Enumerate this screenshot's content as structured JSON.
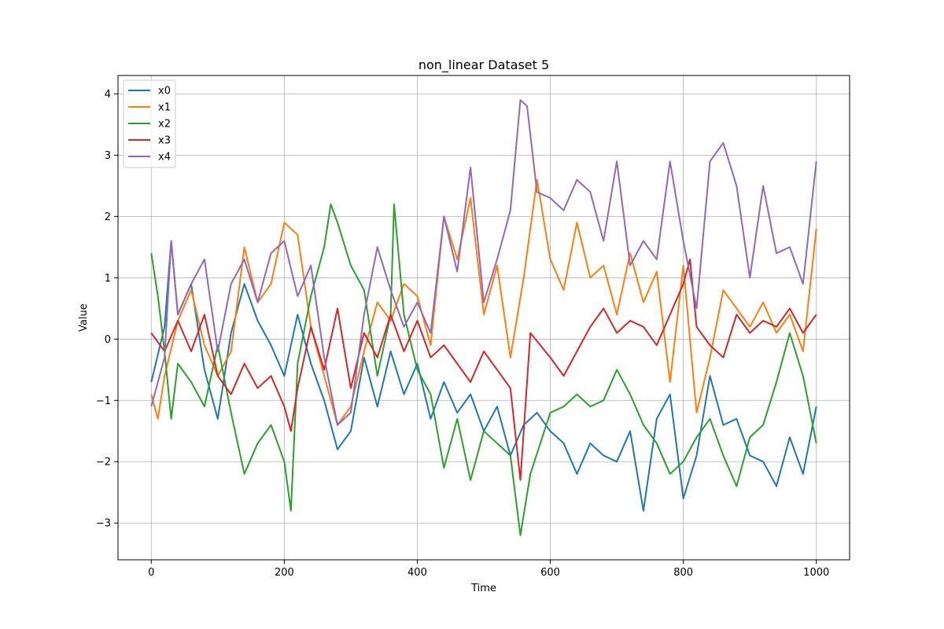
{
  "chart_data": {
    "type": "line",
    "title": "non_linear Dataset 5",
    "xlabel": "Time",
    "ylabel": "Value",
    "xlim": [
      -50,
      1050
    ],
    "ylim": [
      -3.6,
      4.3
    ],
    "xticks": [
      0,
      200,
      400,
      600,
      800,
      1000
    ],
    "yticks": [
      -3,
      -2,
      -1,
      0,
      1,
      2,
      3,
      4
    ],
    "grid": true,
    "legend_position": "top-left",
    "series": [
      {
        "name": "x0",
        "color": "#1f77b4",
        "x": [
          0,
          20,
          30,
          40,
          60,
          80,
          100,
          120,
          140,
          160,
          180,
          200,
          220,
          240,
          260,
          280,
          300,
          320,
          340,
          360,
          380,
          400,
          420,
          440,
          460,
          480,
          500,
          520,
          540,
          560,
          580,
          600,
          620,
          640,
          660,
          680,
          700,
          720,
          740,
          760,
          780,
          800,
          820,
          840,
          860,
          880,
          900,
          920,
          940,
          960,
          980,
          1000
        ],
        "y": [
          -0.7,
          0.2,
          1.6,
          0.4,
          0.9,
          -0.5,
          -1.3,
          0.1,
          0.9,
          0.3,
          -0.1,
          -0.6,
          0.4,
          -0.4,
          -1.0,
          -1.8,
          -1.5,
          -0.3,
          -1.1,
          -0.2,
          -0.9,
          -0.4,
          -1.3,
          -0.7,
          -1.2,
          -0.9,
          -1.5,
          -1.1,
          -1.9,
          -1.4,
          -1.2,
          -1.5,
          -1.7,
          -2.2,
          -1.7,
          -1.9,
          -2.0,
          -1.5,
          -2.8,
          -1.3,
          -0.9,
          -2.6,
          -1.9,
          -0.6,
          -1.4,
          -1.3,
          -1.9,
          -2.0,
          -2.4,
          -1.6,
          -2.2,
          -1.1
        ]
      },
      {
        "name": "x1",
        "color": "#ff7f0e",
        "x": [
          0,
          10,
          20,
          40,
          60,
          80,
          100,
          120,
          140,
          160,
          180,
          200,
          220,
          240,
          260,
          280,
          300,
          320,
          340,
          360,
          380,
          400,
          420,
          440,
          460,
          480,
          500,
          520,
          540,
          560,
          580,
          600,
          620,
          640,
          660,
          680,
          700,
          720,
          740,
          760,
          780,
          800,
          820,
          840,
          860,
          880,
          900,
          920,
          940,
          960,
          980,
          1000
        ],
        "y": [
          -0.9,
          -1.3,
          -0.6,
          0.3,
          0.8,
          -0.1,
          -0.6,
          -0.2,
          1.5,
          0.6,
          0.9,
          1.9,
          1.7,
          0.2,
          -0.6,
          -1.4,
          -1.1,
          -0.2,
          0.6,
          0.3,
          0.9,
          0.7,
          -0.1,
          2.0,
          1.3,
          2.3,
          0.4,
          1.2,
          -0.3,
          1.0,
          2.6,
          1.3,
          0.8,
          1.9,
          1.0,
          1.2,
          0.4,
          1.4,
          0.6,
          1.1,
          -0.7,
          1.2,
          -1.2,
          -0.3,
          0.8,
          0.5,
          0.2,
          0.6,
          0.1,
          0.4,
          -0.2,
          1.8
        ]
      },
      {
        "name": "x2",
        "color": "#2ca02c",
        "x": [
          0,
          10,
          20,
          30,
          40,
          60,
          80,
          100,
          120,
          140,
          160,
          180,
          200,
          210,
          220,
          240,
          260,
          270,
          280,
          300,
          320,
          340,
          360,
          365,
          380,
          400,
          420,
          440,
          460,
          480,
          500,
          520,
          540,
          555,
          570,
          600,
          620,
          640,
          660,
          680,
          700,
          720,
          740,
          760,
          780,
          800,
          820,
          840,
          860,
          880,
          900,
          920,
          940,
          960,
          980,
          1000
        ],
        "y": [
          1.4,
          0.7,
          -0.2,
          -1.3,
          -0.4,
          -0.7,
          -1.1,
          -0.1,
          -1.2,
          -2.2,
          -1.7,
          -1.4,
          -2.0,
          -2.8,
          -0.4,
          0.7,
          1.5,
          2.2,
          1.9,
          1.2,
          0.8,
          -0.6,
          0.4,
          2.2,
          0.4,
          -0.5,
          -0.9,
          -2.1,
          -1.3,
          -2.3,
          -1.5,
          -1.7,
          -1.9,
          -3.2,
          -2.2,
          -1.2,
          -1.1,
          -0.9,
          -1.1,
          -1.0,
          -0.5,
          -0.9,
          -1.4,
          -1.7,
          -2.2,
          -2.0,
          -1.6,
          -1.3,
          -1.9,
          -2.4,
          -1.6,
          -1.4,
          -0.7,
          0.1,
          -0.6,
          -1.7
        ]
      },
      {
        "name": "x3",
        "color": "#d62728",
        "x": [
          0,
          20,
          40,
          60,
          80,
          100,
          120,
          140,
          160,
          180,
          200,
          210,
          220,
          240,
          260,
          280,
          300,
          320,
          340,
          360,
          380,
          400,
          420,
          440,
          460,
          480,
          500,
          520,
          540,
          555,
          570,
          600,
          620,
          640,
          660,
          680,
          700,
          720,
          740,
          760,
          780,
          800,
          810,
          820,
          840,
          860,
          880,
          900,
          920,
          940,
          960,
          980,
          1000
        ],
        "y": [
          0.1,
          -0.2,
          0.3,
          -0.2,
          0.4,
          -0.6,
          -0.9,
          -0.4,
          -0.8,
          -0.6,
          -1.1,
          -1.5,
          -0.8,
          0.2,
          -0.5,
          0.5,
          -0.8,
          0.1,
          -0.3,
          0.4,
          -0.2,
          0.3,
          -0.3,
          -0.1,
          -0.4,
          -0.7,
          -0.2,
          -0.5,
          -0.8,
          -2.3,
          0.1,
          -0.3,
          -0.6,
          -0.2,
          0.2,
          0.5,
          0.1,
          0.3,
          0.2,
          -0.1,
          0.4,
          0.9,
          1.3,
          0.2,
          -0.1,
          -0.3,
          0.4,
          0.1,
          0.3,
          0.2,
          0.5,
          0.1,
          0.4
        ]
      },
      {
        "name": "x4",
        "color": "#9467bd",
        "x": [
          0,
          20,
          30,
          40,
          60,
          80,
          100,
          120,
          140,
          160,
          180,
          200,
          220,
          240,
          260,
          280,
          300,
          320,
          340,
          360,
          380,
          400,
          420,
          440,
          460,
          480,
          500,
          520,
          540,
          555,
          565,
          580,
          600,
          620,
          640,
          660,
          680,
          700,
          720,
          740,
          760,
          780,
          800,
          820,
          840,
          860,
          880,
          900,
          920,
          940,
          960,
          980,
          1000
        ],
        "y": [
          -1.1,
          -0.3,
          1.6,
          0.4,
          0.9,
          1.3,
          -0.2,
          0.9,
          1.3,
          0.6,
          1.4,
          1.6,
          0.7,
          1.2,
          -0.3,
          -1.4,
          -1.2,
          0.4,
          1.5,
          0.8,
          0.2,
          0.6,
          0.1,
          2.0,
          1.1,
          2.8,
          0.6,
          1.3,
          2.1,
          3.9,
          3.8,
          2.4,
          2.3,
          2.1,
          2.6,
          2.4,
          1.6,
          2.9,
          1.2,
          1.6,
          1.3,
          2.9,
          1.6,
          0.5,
          2.9,
          3.2,
          2.5,
          1.0,
          2.5,
          1.4,
          1.5,
          0.9,
          2.9
        ]
      }
    ]
  }
}
